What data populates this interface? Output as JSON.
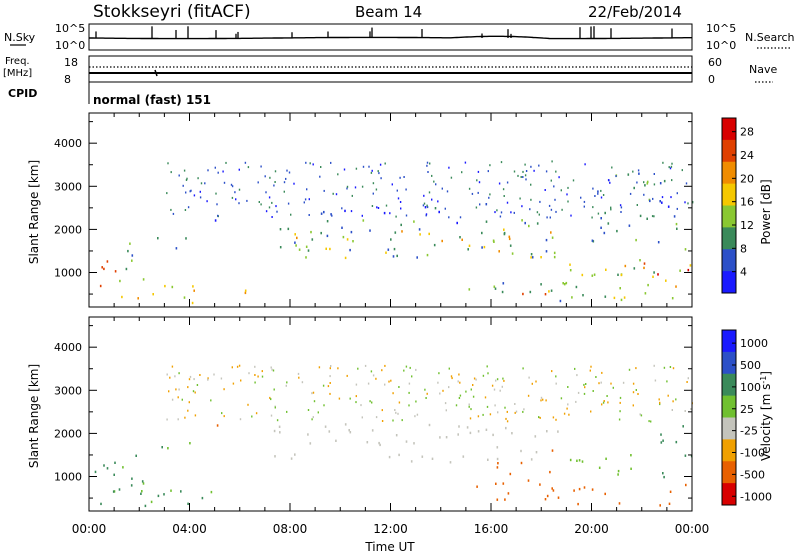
{
  "header": {
    "station": "Stokkseyri (fitACF)",
    "beam": "Beam 14",
    "date": "22/Feb/2014"
  },
  "status_panels": {
    "nsky_label": "N.Sky",
    "nsky_ticks": [
      "10^5",
      "10^0"
    ],
    "nsearch_label": "N.Search",
    "nsearch_ticks": [
      "10^5",
      "10^0"
    ],
    "freq_label_line1": "Freq.",
    "freq_label_line2": "[MHz]",
    "freq_ticks": [
      "18",
      "8"
    ],
    "nave_label": "Nave",
    "nave_ticks": [
      "60",
      "0"
    ],
    "cpid_label": "CPID",
    "cpid_value": "normal (fast) 151"
  },
  "colors": {
    "power_scale": [
      "#1a1aff",
      "#2c50c8",
      "#3a8a5a",
      "#8ac832",
      "#f5c800",
      "#f08c00",
      "#e04000",
      "#d80000"
    ],
    "velocity_scale": [
      "#1a1aff",
      "#2c50c8",
      "#3a8a5a",
      "#70c030",
      "#c8c8c0",
      "#f0a000",
      "#e86000",
      "#d80000"
    ],
    "velocity_gray": "#c4c4bc"
  },
  "chart_data": [
    {
      "type": "heatmap",
      "panel": "power",
      "title": "Stokkseyri (fitACF) Beam 14 22/Feb/2014",
      "xlabel": "",
      "ylabel": "Slant Range [km]",
      "xlim": [
        "00:00",
        "24:00"
      ],
      "ylim": [
        200,
        4700
      ],
      "x_ticks": [
        "00:00",
        "04:00",
        "08:00",
        "12:00",
        "16:00",
        "20:00",
        "00:00"
      ],
      "y_ticks": [
        1000,
        2000,
        3000,
        4000
      ],
      "colorbar_label": "Power [dB]",
      "colorbar_ticks": [
        4,
        8,
        12,
        16,
        20,
        24,
        28
      ],
      "colorbar_range": [
        0,
        30
      ],
      "regions": [
        {
          "t": [
            0.0,
            1.5
          ],
          "r": [
            500,
            1300
          ],
          "value": 22
        },
        {
          "t": [
            0.0,
            4.5
          ],
          "r": [
            250,
            700
          ],
          "value": 18
        },
        {
          "t": [
            1.0,
            2.3
          ],
          "r": [
            700,
            1800
          ],
          "value": 10
        },
        {
          "t": [
            2.5,
            4.0
          ],
          "r": [
            1500,
            1800
          ],
          "value": 6
        },
        {
          "t": [
            5.0,
            5.6
          ],
          "r": [
            2100,
            2450
          ],
          "value": 6
        },
        {
          "t": [
            5.8,
            7.5
          ],
          "r": [
            250,
            600
          ],
          "value": 20
        },
        {
          "t": [
            7.3,
            18.8
          ],
          "r": [
            1300,
            2200
          ],
          "value": 8
        },
        {
          "t": [
            8.0,
            19.0
          ],
          "r": [
            1300,
            2000
          ],
          "value": 16
        },
        {
          "t": [
            15.0,
            19.5
          ],
          "r": [
            300,
            800
          ],
          "value": 10
        },
        {
          "t": [
            17.0,
            19.0
          ],
          "r": [
            400,
            650
          ],
          "value": 22
        },
        {
          "t": [
            19.0,
            24.0
          ],
          "r": [
            300,
            1300
          ],
          "value": 14
        },
        {
          "t": [
            22.0,
            24.0
          ],
          "r": [
            500,
            1200
          ],
          "value": 24
        },
        {
          "t": [
            20.0,
            24.0
          ],
          "r": [
            1500,
            3300
          ],
          "value": 8
        },
        {
          "t": [
            9.0,
            16.0
          ],
          "r": [
            2300,
            2600
          ],
          "value": 4
        }
      ]
    },
    {
      "type": "heatmap",
      "panel": "velocity",
      "xlabel": "Time UT",
      "ylabel": "Slant Range [km]",
      "xlim": [
        "00:00",
        "24:00"
      ],
      "ylim": [
        200,
        4700
      ],
      "x_ticks": [
        "00:00",
        "04:00",
        "08:00",
        "12:00",
        "16:00",
        "20:00",
        "00:00"
      ],
      "y_ticks": [
        1000,
        2000,
        3000,
        4000
      ],
      "colorbar_label": "Velocity [m s^-1]",
      "colorbar_ticks": [
        1000,
        500,
        100,
        25,
        -25,
        -100,
        -500,
        -1000
      ],
      "regions": [
        {
          "t": [
            0.0,
            1.5
          ],
          "r": [
            500,
            1300
          ],
          "value": 100
        },
        {
          "t": [
            0.0,
            5.5
          ],
          "r": [
            250,
            700
          ],
          "value": 120
        },
        {
          "t": [
            1.0,
            2.3
          ],
          "r": [
            700,
            1800
          ],
          "value": 120
        },
        {
          "t": [
            2.5,
            4.0
          ],
          "r": [
            1500,
            1800
          ],
          "value": 100
        },
        {
          "t": [
            5.0,
            5.6
          ],
          "r": [
            2000,
            2400
          ],
          "value": -200
        },
        {
          "t": [
            7.3,
            18.8
          ],
          "r": [
            1300,
            2200
          ],
          "value": 0
        },
        {
          "t": [
            15.0,
            19.5
          ],
          "r": [
            300,
            800
          ],
          "value": -300
        },
        {
          "t": [
            16.0,
            19.0
          ],
          "r": [
            800,
            1600
          ],
          "value": -200
        },
        {
          "t": [
            19.0,
            24.0
          ],
          "r": [
            300,
            800
          ],
          "value": -150
        },
        {
          "t": [
            19.0,
            22.0
          ],
          "r": [
            700,
            1500
          ],
          "value": 60
        },
        {
          "t": [
            22.5,
            24.0
          ],
          "r": [
            800,
            2200
          ],
          "value": 300
        }
      ]
    }
  ]
}
